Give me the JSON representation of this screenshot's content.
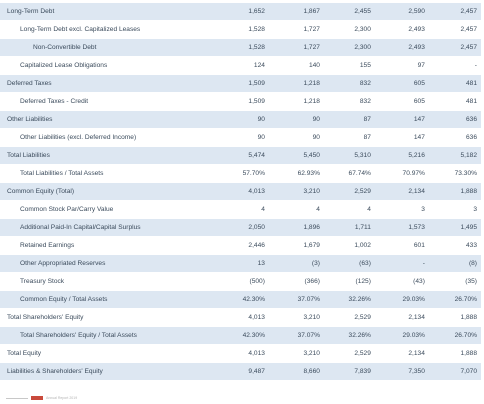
{
  "table": {
    "rows": [
      {
        "label": "Long-Term Debt",
        "level": 0,
        "values": [
          "1,652",
          "1,867",
          "2,455",
          "2,590",
          "2,457"
        ]
      },
      {
        "label": "Long-Term Debt excl. Capitalized Leases",
        "level": 1,
        "values": [
          "1,528",
          "1,727",
          "2,300",
          "2,493",
          "2,457"
        ]
      },
      {
        "label": "Non-Convertible Debt",
        "level": 2,
        "values": [
          "1,528",
          "1,727",
          "2,300",
          "2,493",
          "2,457"
        ]
      },
      {
        "label": "Capitalized Lease Obligations",
        "level": 1,
        "values": [
          "124",
          "140",
          "155",
          "97",
          "-"
        ]
      },
      {
        "label": "Deferred Taxes",
        "level": 0,
        "values": [
          "1,509",
          "1,218",
          "832",
          "605",
          "481"
        ]
      },
      {
        "label": "Deferred Taxes - Credit",
        "level": 1,
        "values": [
          "1,509",
          "1,218",
          "832",
          "605",
          "481"
        ]
      },
      {
        "label": "Other Liabilities",
        "level": 0,
        "values": [
          "90",
          "90",
          "87",
          "147",
          "636"
        ]
      },
      {
        "label": "Other Liabilities (excl. Deferred Income)",
        "level": 1,
        "values": [
          "90",
          "90",
          "87",
          "147",
          "636"
        ]
      },
      {
        "label": "Total Liabilities",
        "level": 0,
        "values": [
          "5,474",
          "5,450",
          "5,310",
          "5,216",
          "5,182"
        ]
      },
      {
        "label": "Total Liabilities / Total Assets",
        "level": 1,
        "values": [
          "57.70%",
          "62.93%",
          "67.74%",
          "70.97%",
          "73.30%"
        ]
      },
      {
        "label": "Common Equity (Total)",
        "level": 0,
        "values": [
          "4,013",
          "3,210",
          "2,529",
          "2,134",
          "1,888"
        ]
      },
      {
        "label": "Common Stock Par/Carry Value",
        "level": 1,
        "values": [
          "4",
          "4",
          "4",
          "3",
          "3"
        ]
      },
      {
        "label": "Additional Paid-In Capital/Capital Surplus",
        "level": 1,
        "values": [
          "2,050",
          "1,896",
          "1,711",
          "1,573",
          "1,495"
        ]
      },
      {
        "label": "Retained Earnings",
        "level": 1,
        "values": [
          "2,446",
          "1,679",
          "1,002",
          "601",
          "433"
        ]
      },
      {
        "label": "Other Appropriated Reserves",
        "level": 1,
        "values": [
          "13",
          "(3)",
          "(63)",
          "-",
          "(8)"
        ]
      },
      {
        "label": "Treasury Stock",
        "level": 1,
        "values": [
          "(500)",
          "(366)",
          "(125)",
          "(43)",
          "(35)"
        ]
      },
      {
        "label": "Common Equity / Total Assets",
        "level": 1,
        "values": [
          "42.30%",
          "37.07%",
          "32.26%",
          "29.03%",
          "26.70%"
        ]
      },
      {
        "label": "Total Shareholders' Equity",
        "level": 0,
        "values": [
          "4,013",
          "3,210",
          "2,529",
          "2,134",
          "1,888"
        ]
      },
      {
        "label": "Total Shareholders' Equity / Total Assets",
        "level": 1,
        "values": [
          "42.30%",
          "37.07%",
          "32.26%",
          "29.03%",
          "26.70%"
        ]
      },
      {
        "label": "Total Equity",
        "level": 0,
        "values": [
          "4,013",
          "3,210",
          "2,529",
          "2,134",
          "1,888"
        ]
      },
      {
        "label": "Liabilities & Shareholders' Equity",
        "level": 0,
        "values": [
          "9,487",
          "8,660",
          "7,839",
          "7,350",
          "7,070"
        ]
      }
    ]
  },
  "footer": {
    "text": "Annual Report 2019",
    "logo_color": "#c94a3c"
  },
  "colors": {
    "row_shade": "#dde7f2",
    "text": "#3b4b5c"
  }
}
